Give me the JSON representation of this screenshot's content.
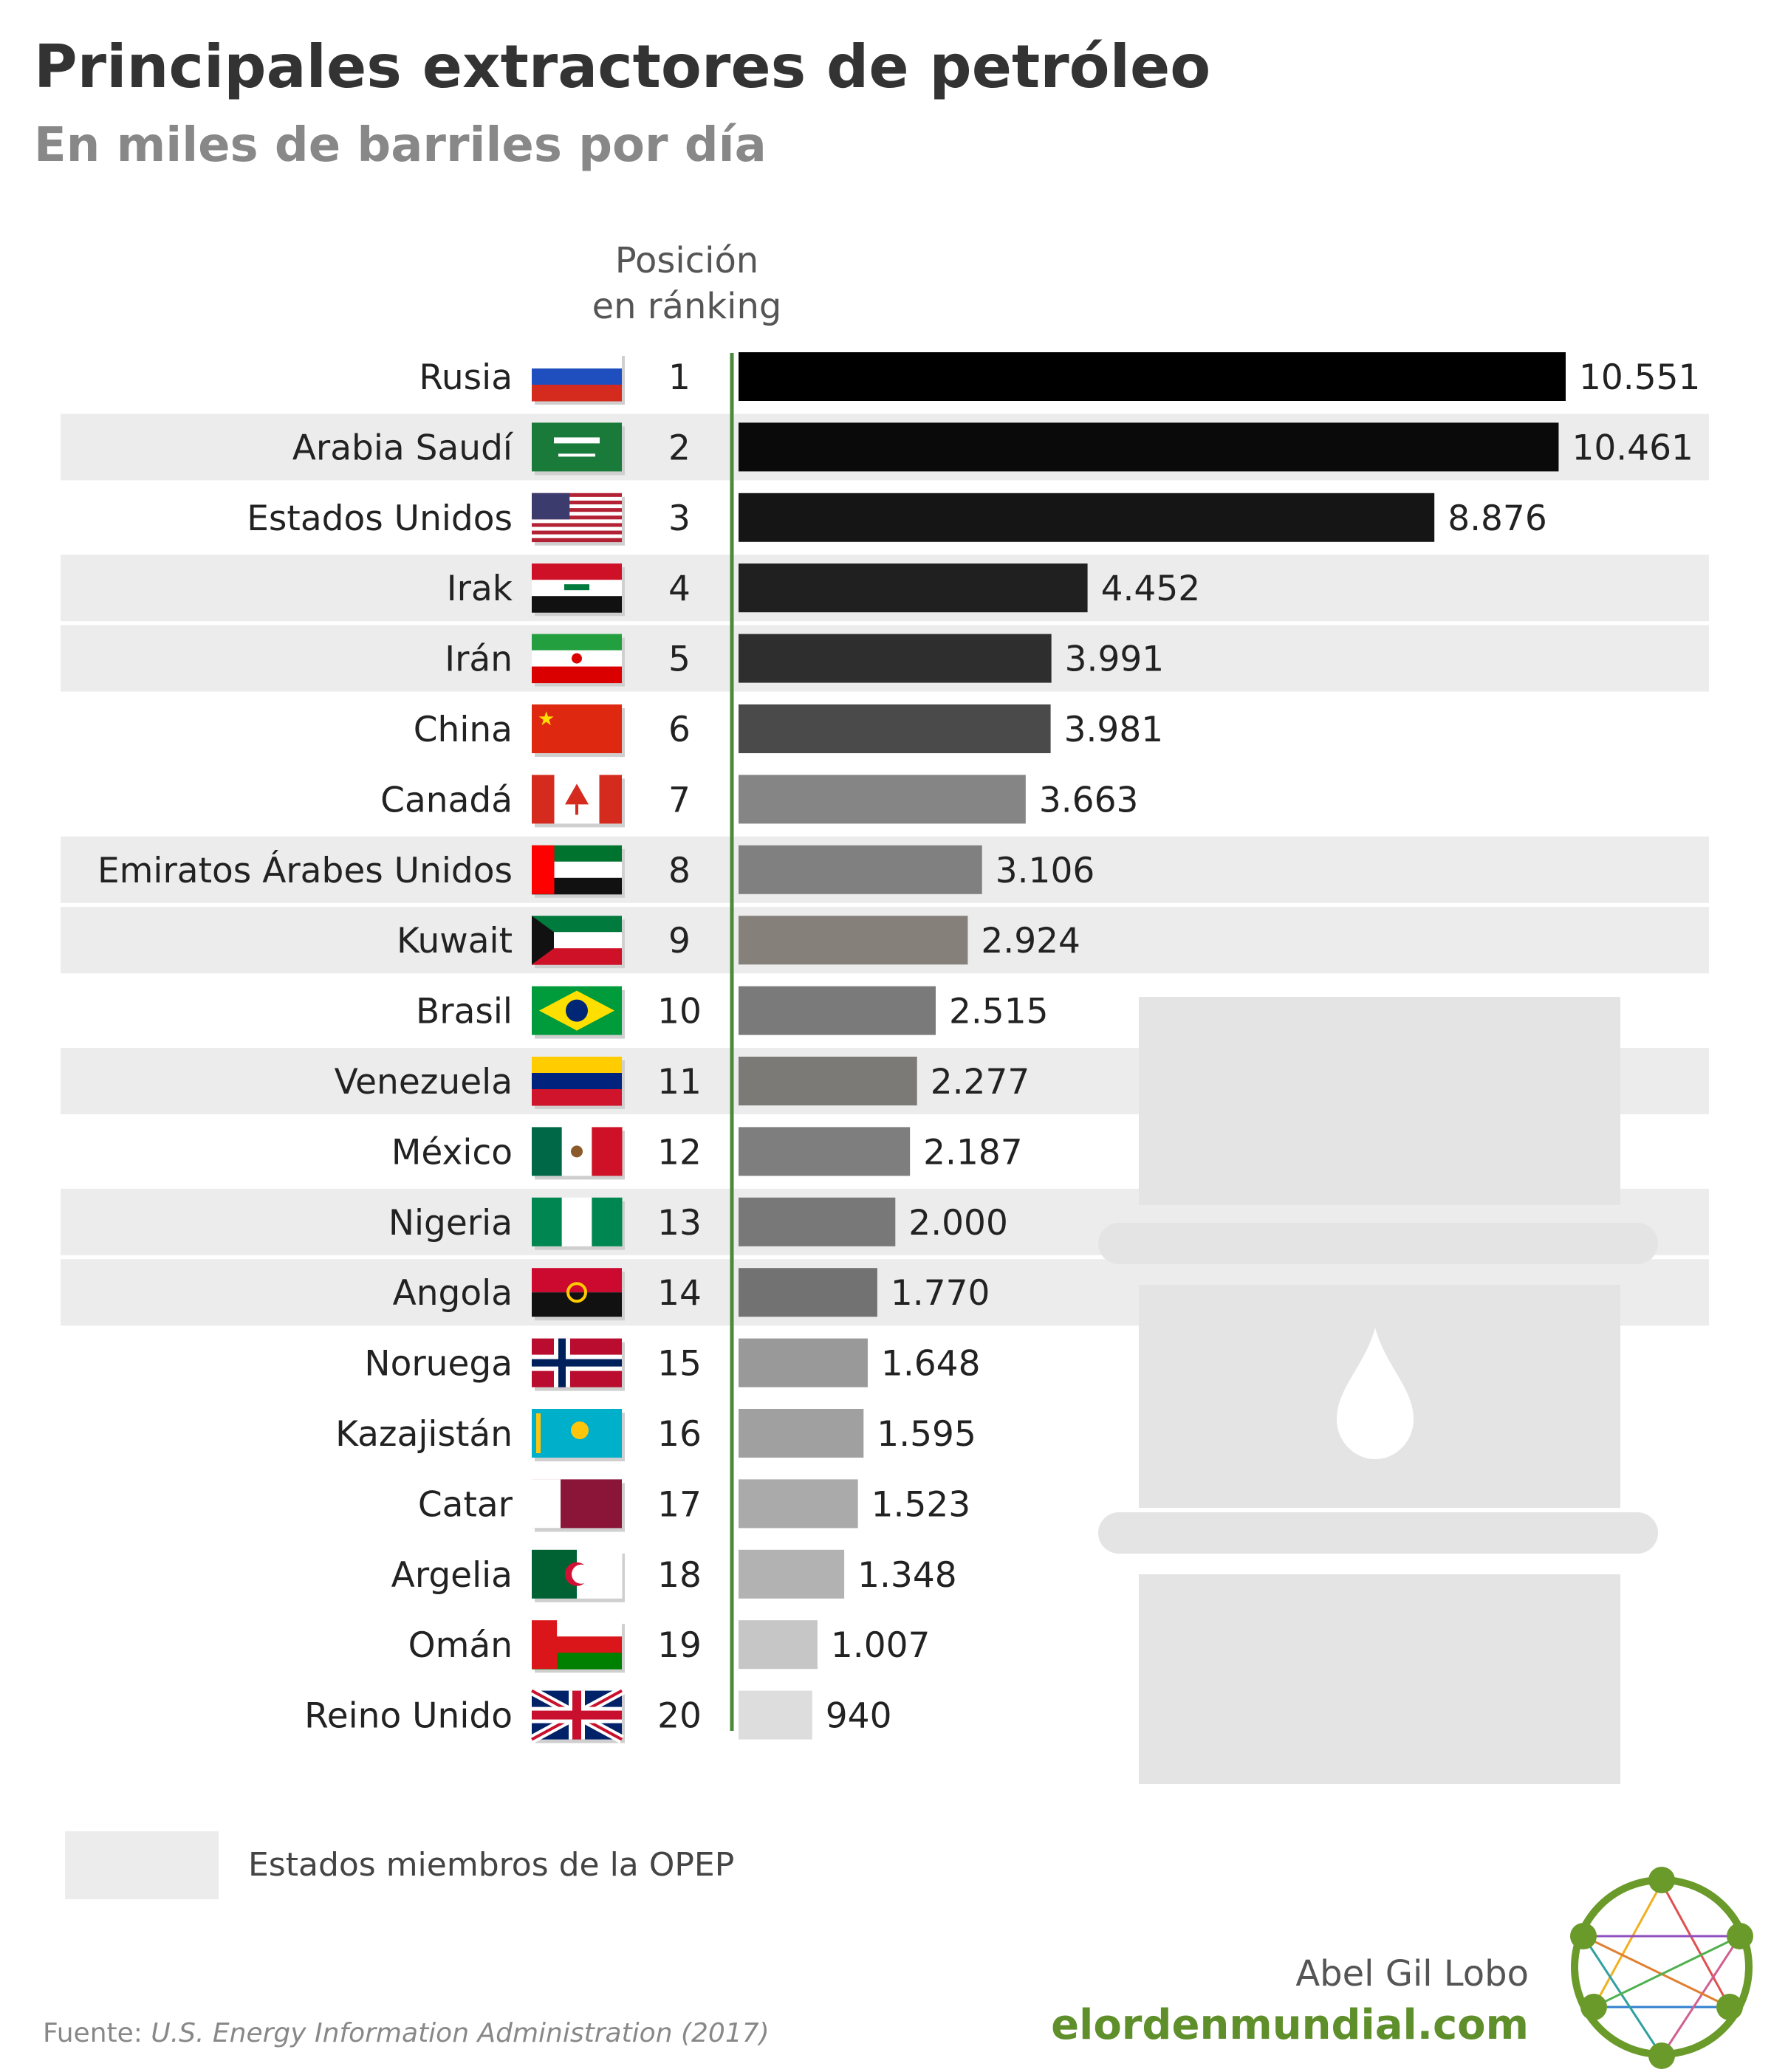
{
  "header": {
    "title": "Principales extractores de petróleo",
    "subtitle": "En miles de barriles por día",
    "rank_header_line1": "Posición",
    "rank_header_line2": "en ránking"
  },
  "chart_data": {
    "type": "bar",
    "orientation": "horizontal",
    "title": "Principales extractores de petróleo",
    "subtitle": "En miles de barriles por día",
    "categories": [
      "Rusia",
      "Arabia Saudí",
      "Estados Unidos",
      "Irak",
      "Irán",
      "China",
      "Canadá",
      "Emiratos Árabes Unidos",
      "Kuwait",
      "Brasil",
      "Venezuela",
      "México",
      "Nigeria",
      "Angola",
      "Noruega",
      "Kazajistán",
      "Catar",
      "Argelia",
      "Omán",
      "Reino Unido"
    ],
    "ranks": [
      "1",
      "2",
      "3",
      "4",
      "5",
      "6",
      "7",
      "8",
      "9",
      "10",
      "11",
      "12",
      "13",
      "14",
      "15",
      "16",
      "17",
      "18",
      "19",
      "20"
    ],
    "values": [
      10551,
      10461,
      8876,
      4452,
      3991,
      3981,
      3663,
      3106,
      2924,
      2515,
      2277,
      2187,
      2000,
      1770,
      1648,
      1595,
      1523,
      1348,
      1007,
      940
    ],
    "value_labels": [
      "10.551",
      "10.461",
      "8.876",
      "4.452",
      "3.991",
      "3.981",
      "3.663",
      "3.106",
      "2.924",
      "2.515",
      "2.277",
      "2.187",
      "2.000",
      "1.770",
      "1.648",
      "1.595",
      "1.523",
      "1.348",
      "1.007",
      "940"
    ],
    "opec_member": [
      false,
      true,
      false,
      true,
      true,
      false,
      false,
      true,
      true,
      false,
      true,
      false,
      true,
      true,
      false,
      false,
      false,
      false,
      false,
      false
    ],
    "bar_colors": [
      "#000000",
      "#0a0a0a",
      "#151515",
      "#202020",
      "#2e2e2e",
      "#4a4a4a",
      "#858585",
      "#808080",
      "#858079",
      "#7a7a7a",
      "#7c7a77",
      "#7e7e7e",
      "#787878",
      "#727272",
      "#999999",
      "#a0a0a0",
      "#aaaaaa",
      "#b2b2b2",
      "#c6c6c6",
      "#dddddd"
    ],
    "flags": [
      "flag-russia",
      "flag-saudi-arabia",
      "flag-usa",
      "flag-iraq",
      "flag-iran",
      "flag-china",
      "flag-canada",
      "flag-uae",
      "flag-kuwait",
      "flag-brazil",
      "flag-venezuela",
      "flag-mexico",
      "flag-nigeria",
      "flag-angola",
      "flag-norway",
      "flag-kazakhstan",
      "flag-qatar",
      "flag-algeria",
      "flag-oman",
      "flag-uk"
    ],
    "axis_color": "#4a8a3a",
    "xlim": [
      0,
      10551
    ],
    "legend": "Estados miembros de la OPEP",
    "grid": false
  },
  "legend": {
    "label": "Estados miembros de la OPEP",
    "color": "#ececec"
  },
  "footer": {
    "source_prefix": "Fuente: ",
    "source_name": "U.S. Energy Information Administration (2017)",
    "author": "Abel Gil Lobo",
    "website": "elordenmundial.com",
    "brand_color": "#5e8f2a"
  },
  "background_icon": "oil-barrel-icon"
}
